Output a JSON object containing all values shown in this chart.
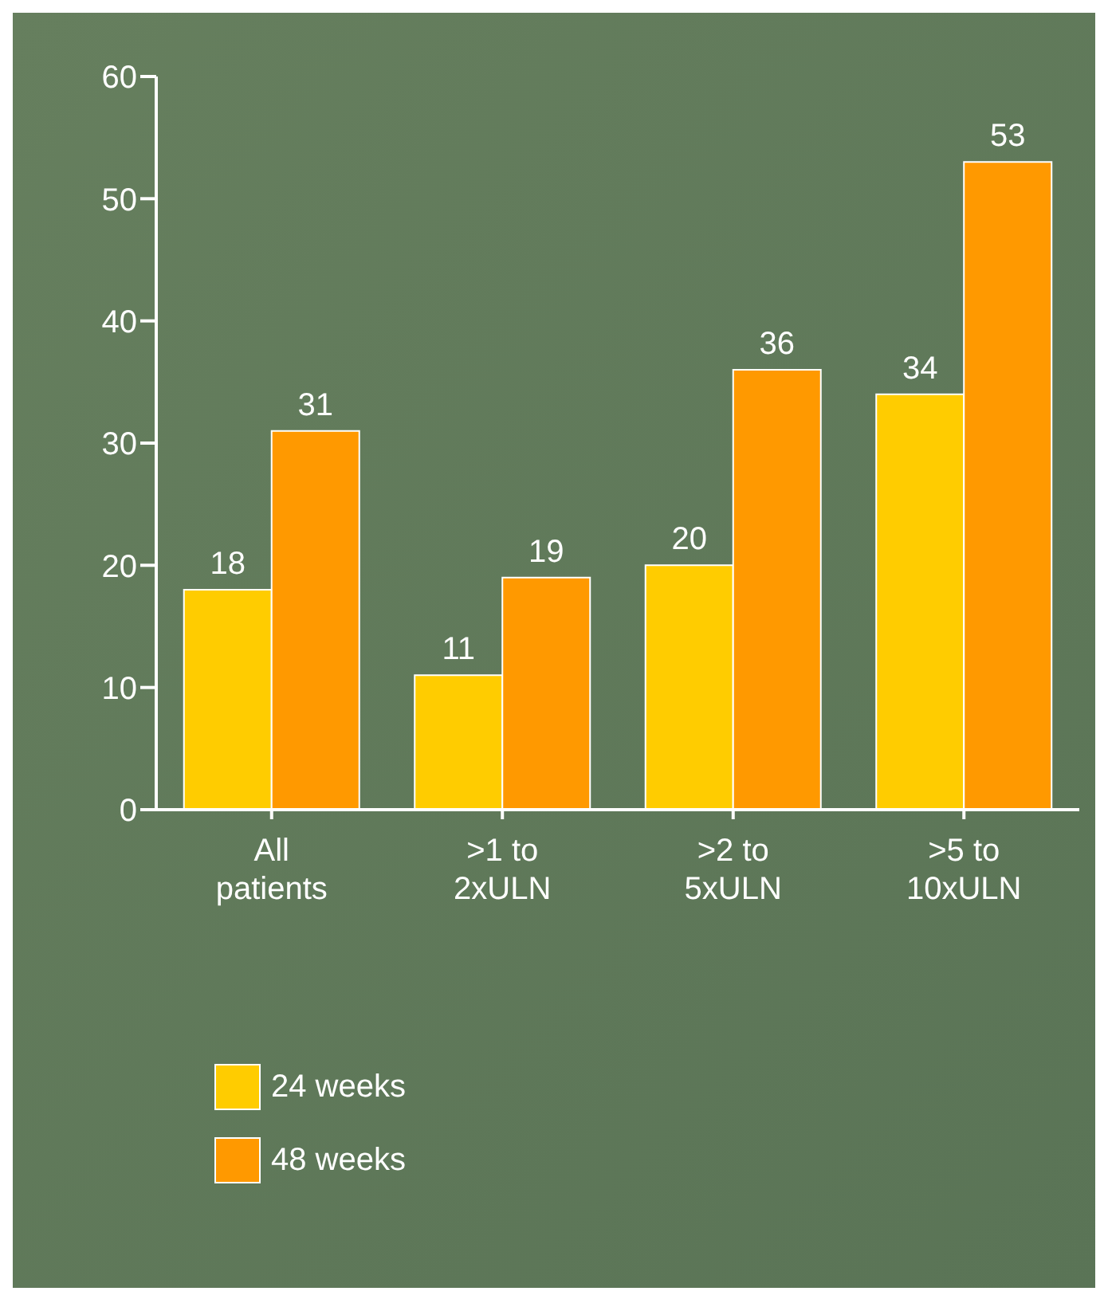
{
  "chart_data": {
    "type": "bar",
    "categories": [
      "All patients",
      ">1 to 2xULN",
      ">2 to 5xULN",
      ">5 to 10xULN"
    ],
    "series": [
      {
        "name": "24 weeks",
        "color": "#ffcc00",
        "values": [
          18,
          11,
          20,
          34
        ]
      },
      {
        "name": "48 weeks",
        "color": "#ff9900",
        "values": [
          31,
          19,
          36,
          53
        ]
      }
    ],
    "ylim": [
      0,
      60
    ],
    "yticks": [
      0,
      10,
      20,
      30,
      40,
      50,
      60
    ],
    "grid": false,
    "legend": "bottom left",
    "data_labels": true
  }
}
